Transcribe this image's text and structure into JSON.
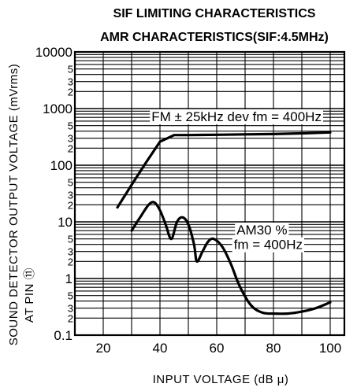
{
  "chart_data": {
    "type": "line",
    "title": "SIF LIMITING CHARACTERISTICS",
    "subtitle": "AMR CHARACTERISTICS(SIF:4.5MHz)",
    "xlabel": "INPUT  VOLTAGE (dB μ)",
    "ylabel": "SOUND DETECTOR OUTPUT VOLTAGE (mVrms)",
    "ylabel2": "AT PIN ⑪",
    "xlim": [
      10,
      105
    ],
    "ylim": [
      0.1,
      10000
    ],
    "yscale": "log",
    "grid": true,
    "x_ticks": [
      "20",
      "40",
      "60",
      "80",
      "100"
    ],
    "x_tick_values": [
      20,
      40,
      60,
      80,
      100
    ],
    "y_ticks": [
      "0.1",
      "1",
      "10",
      "100",
      "1000",
      "10000"
    ],
    "y_tick_values": [
      0.1,
      1,
      10,
      100,
      1000,
      10000
    ],
    "y_minor_labels": [
      "2",
      "3",
      "5"
    ],
    "series": [
      {
        "x": [
          25,
          30,
          35,
          40,
          45,
          50,
          60,
          70,
          80,
          90,
          100
        ],
        "y": [
          18,
          45,
          110,
          260,
          340,
          340,
          345,
          350,
          355,
          365,
          380
        ]
      },
      {
        "x": [
          30,
          33,
          36,
          38,
          40,
          42,
          44,
          46,
          48,
          50,
          52,
          53,
          55,
          57,
          59,
          62,
          65,
          68,
          72,
          76,
          80,
          85,
          90,
          95,
          100
        ],
        "y": [
          7,
          12,
          20,
          22,
          16,
          9,
          5,
          10,
          12,
          9,
          4,
          2,
          3,
          4.5,
          5,
          3.6,
          1.8,
          0.75,
          0.34,
          0.25,
          0.24,
          0.24,
          0.26,
          0.3,
          0.38
        ]
      }
    ],
    "annotations": [
      {
        "text": "FM ± 25kHz   dev   fm = 400Hz",
        "x": 37,
        "y": 600
      },
      {
        "text": "AM30 %",
        "x": 67,
        "y": 6
      },
      {
        "text": "fm = 400Hz",
        "x": 66,
        "y": 3.3
      }
    ]
  }
}
